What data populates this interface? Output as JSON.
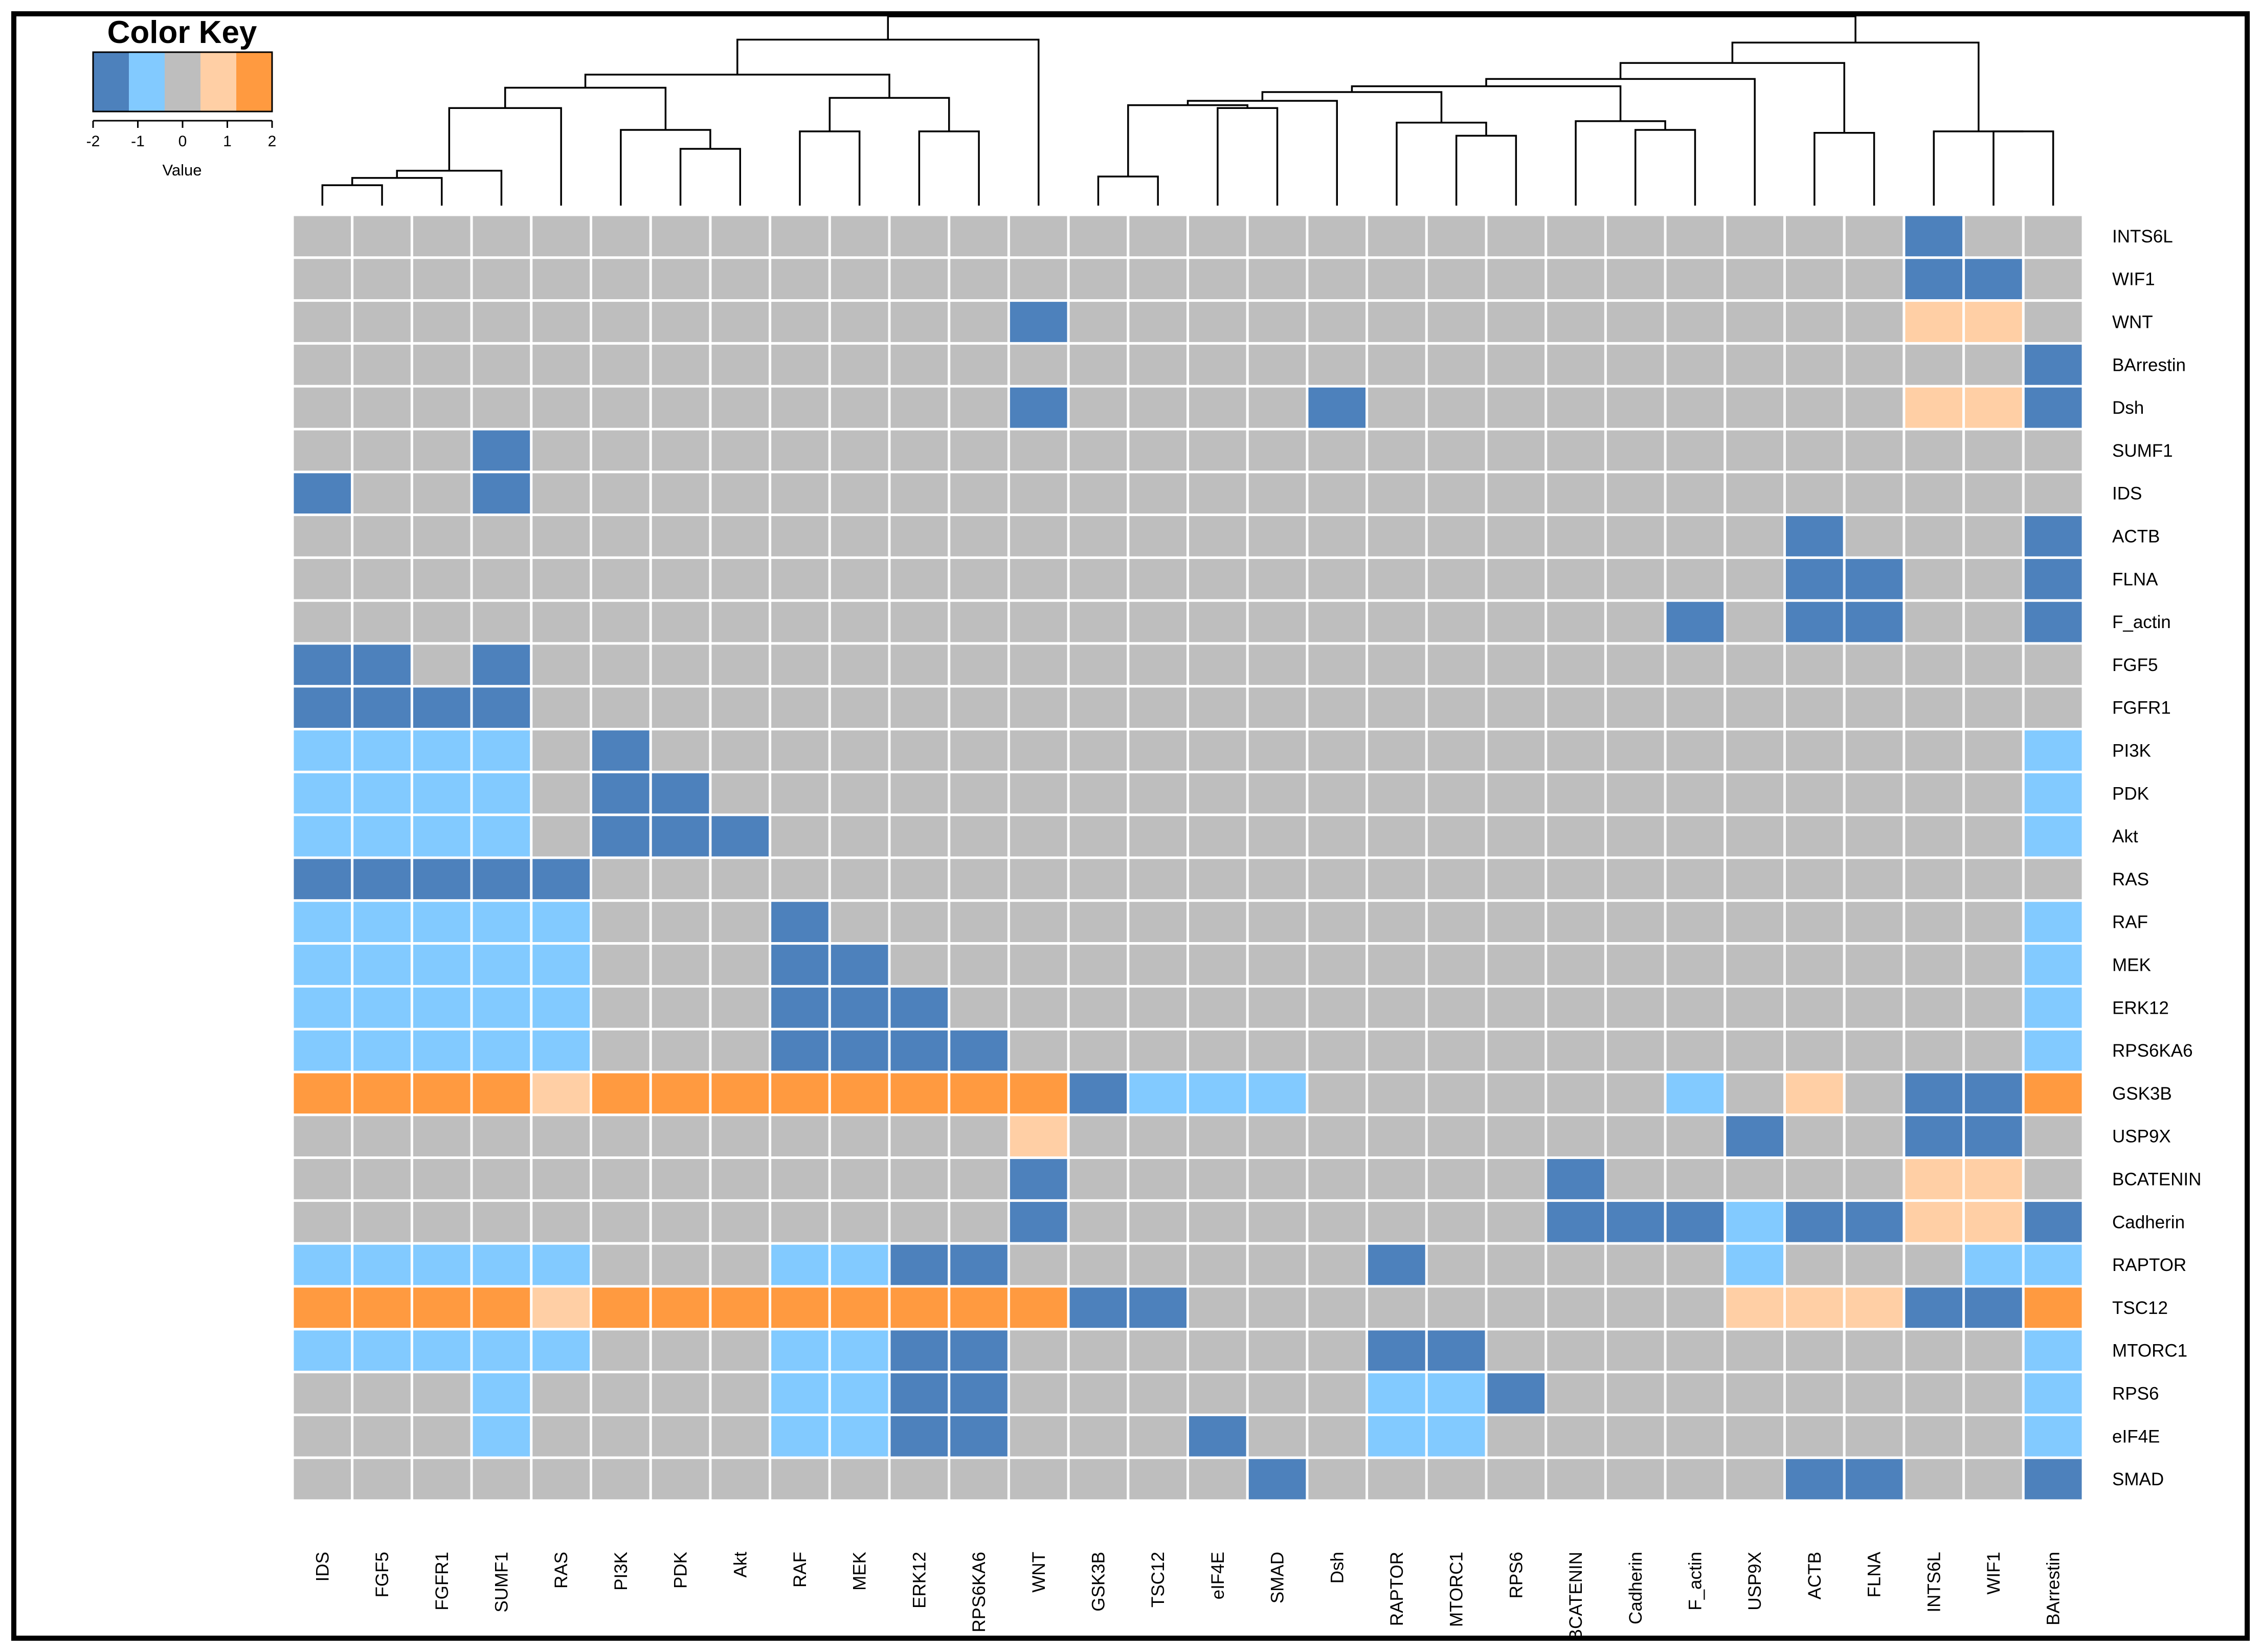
{
  "chart_data": {
    "type": "heatmap",
    "title": "",
    "color_key": {
      "title": "Color Key",
      "label": "Value",
      "range": [
        -2,
        2
      ],
      "ticks": [
        "-2",
        "-1",
        "0",
        "1",
        "2"
      ],
      "colors": [
        "#4d81bc",
        "#82caff",
        "#bebebe",
        "#ffcfa5",
        "#ff9a40"
      ]
    },
    "columns": [
      "IDS",
      "FGF5",
      "FGFR1",
      "SUMF1",
      "RAS",
      "PI3K",
      "PDK",
      "Akt",
      "RAF",
      "MEK",
      "ERK12",
      "RPS6KA6",
      "WNT",
      "GSK3B",
      "TSC12",
      "eIF4E",
      "SMAD",
      "Dsh",
      "RAPTOR",
      "MTORC1",
      "RPS6",
      "BCATENIN",
      "Cadherin",
      "F_actin",
      "USP9X",
      "ACTB",
      "FLNA",
      "INTS6L",
      "WIF1",
      "BArrestin"
    ],
    "rows": [
      "INTS6L",
      "WIF1",
      "WNT",
      "BArrestin",
      "Dsh",
      "SUMF1",
      "IDS",
      "ACTB",
      "FLNA",
      "F_actin",
      "FGF5",
      "FGFR1",
      "PI3K",
      "PDK",
      "Akt",
      "RAS",
      "RAF",
      "MEK",
      "ERK12",
      "RPS6KA6",
      "GSK3B",
      "USP9X",
      "BCATENIN",
      "Cadherin",
      "RAPTOR",
      "TSC12",
      "MTORC1",
      "RPS6",
      "eIF4E",
      "SMAD"
    ],
    "values": [
      [
        0,
        0,
        0,
        0,
        0,
        0,
        0,
        0,
        0,
        0,
        0,
        0,
        0,
        0,
        0,
        0,
        0,
        0,
        0,
        0,
        0,
        0,
        0,
        0,
        0,
        0,
        0,
        -2,
        0,
        0
      ],
      [
        0,
        0,
        0,
        0,
        0,
        0,
        0,
        0,
        0,
        0,
        0,
        0,
        0,
        0,
        0,
        0,
        0,
        0,
        0,
        0,
        0,
        0,
        0,
        0,
        0,
        0,
        0,
        -2,
        -2,
        0
      ],
      [
        0,
        0,
        0,
        0,
        0,
        0,
        0,
        0,
        0,
        0,
        0,
        0,
        -2,
        0,
        0,
        0,
        0,
        0,
        0,
        0,
        0,
        0,
        0,
        0,
        0,
        0,
        0,
        1,
        1,
        0
      ],
      [
        0,
        0,
        0,
        0,
        0,
        0,
        0,
        0,
        0,
        0,
        0,
        0,
        0,
        0,
        0,
        0,
        0,
        0,
        0,
        0,
        0,
        0,
        0,
        0,
        0,
        0,
        0,
        0,
        0,
        -2
      ],
      [
        0,
        0,
        0,
        0,
        0,
        0,
        0,
        0,
        0,
        0,
        0,
        0,
        -2,
        0,
        0,
        0,
        0,
        -2,
        0,
        0,
        0,
        0,
        0,
        0,
        0,
        0,
        0,
        1,
        1,
        -2
      ],
      [
        0,
        0,
        0,
        -2,
        0,
        0,
        0,
        0,
        0,
        0,
        0,
        0,
        0,
        0,
        0,
        0,
        0,
        0,
        0,
        0,
        0,
        0,
        0,
        0,
        0,
        0,
        0,
        0,
        0,
        0
      ],
      [
        -2,
        0,
        0,
        -2,
        0,
        0,
        0,
        0,
        0,
        0,
        0,
        0,
        0,
        0,
        0,
        0,
        0,
        0,
        0,
        0,
        0,
        0,
        0,
        0,
        0,
        0,
        0,
        0,
        0,
        0
      ],
      [
        0,
        0,
        0,
        0,
        0,
        0,
        0,
        0,
        0,
        0,
        0,
        0,
        0,
        0,
        0,
        0,
        0,
        0,
        0,
        0,
        0,
        0,
        0,
        0,
        0,
        -2,
        0,
        0,
        0,
        -2
      ],
      [
        0,
        0,
        0,
        0,
        0,
        0,
        0,
        0,
        0,
        0,
        0,
        0,
        0,
        0,
        0,
        0,
        0,
        0,
        0,
        0,
        0,
        0,
        0,
        0,
        0,
        -2,
        -2,
        0,
        0,
        -2
      ],
      [
        0,
        0,
        0,
        0,
        0,
        0,
        0,
        0,
        0,
        0,
        0,
        0,
        0,
        0,
        0,
        0,
        0,
        0,
        0,
        0,
        0,
        0,
        0,
        -2,
        0,
        -2,
        -2,
        0,
        0,
        -2
      ],
      [
        -2,
        -2,
        0,
        -2,
        0,
        0,
        0,
        0,
        0,
        0,
        0,
        0,
        0,
        0,
        0,
        0,
        0,
        0,
        0,
        0,
        0,
        0,
        0,
        0,
        0,
        0,
        0,
        0,
        0,
        0
      ],
      [
        -2,
        -2,
        -2,
        -2,
        0,
        0,
        0,
        0,
        0,
        0,
        0,
        0,
        0,
        0,
        0,
        0,
        0,
        0,
        0,
        0,
        0,
        0,
        0,
        0,
        0,
        0,
        0,
        0,
        0,
        0
      ],
      [
        -1,
        -1,
        -1,
        -1,
        0,
        -2,
        0,
        0,
        0,
        0,
        0,
        0,
        0,
        0,
        0,
        0,
        0,
        0,
        0,
        0,
        0,
        0,
        0,
        0,
        0,
        0,
        0,
        0,
        0,
        -1
      ],
      [
        -1,
        -1,
        -1,
        -1,
        0,
        -2,
        -2,
        0,
        0,
        0,
        0,
        0,
        0,
        0,
        0,
        0,
        0,
        0,
        0,
        0,
        0,
        0,
        0,
        0,
        0,
        0,
        0,
        0,
        0,
        -1
      ],
      [
        -1,
        -1,
        -1,
        -1,
        0,
        -2,
        -2,
        -2,
        0,
        0,
        0,
        0,
        0,
        0,
        0,
        0,
        0,
        0,
        0,
        0,
        0,
        0,
        0,
        0,
        0,
        0,
        0,
        0,
        0,
        -1
      ],
      [
        -2,
        -2,
        -2,
        -2,
        -2,
        0,
        0,
        0,
        0,
        0,
        0,
        0,
        0,
        0,
        0,
        0,
        0,
        0,
        0,
        0,
        0,
        0,
        0,
        0,
        0,
        0,
        0,
        0,
        0,
        0
      ],
      [
        -1,
        -1,
        -1,
        -1,
        -1,
        0,
        0,
        0,
        -2,
        0,
        0,
        0,
        0,
        0,
        0,
        0,
        0,
        0,
        0,
        0,
        0,
        0,
        0,
        0,
        0,
        0,
        0,
        0,
        0,
        -1
      ],
      [
        -1,
        -1,
        -1,
        -1,
        -1,
        0,
        0,
        0,
        -2,
        -2,
        0,
        0,
        0,
        0,
        0,
        0,
        0,
        0,
        0,
        0,
        0,
        0,
        0,
        0,
        0,
        0,
        0,
        0,
        0,
        -1
      ],
      [
        -1,
        -1,
        -1,
        -1,
        -1,
        0,
        0,
        0,
        -2,
        -2,
        -2,
        0,
        0,
        0,
        0,
        0,
        0,
        0,
        0,
        0,
        0,
        0,
        0,
        0,
        0,
        0,
        0,
        0,
        0,
        -1
      ],
      [
        -1,
        -1,
        -1,
        -1,
        -1,
        0,
        0,
        0,
        -2,
        -2,
        -2,
        -2,
        0,
        0,
        0,
        0,
        0,
        0,
        0,
        0,
        0,
        0,
        0,
        0,
        0,
        0,
        0,
        0,
        0,
        -1
      ],
      [
        2,
        2,
        2,
        2,
        1,
        2,
        2,
        2,
        2,
        2,
        2,
        2,
        2,
        -2,
        -1,
        -1,
        -1,
        0,
        0,
        0,
        0,
        0,
        0,
        -1,
        0,
        1,
        0,
        -2,
        -2,
        2
      ],
      [
        0,
        0,
        0,
        0,
        0,
        0,
        0,
        0,
        0,
        0,
        0,
        0,
        1,
        0,
        0,
        0,
        0,
        0,
        0,
        0,
        0,
        0,
        0,
        0,
        -2,
        0,
        0,
        -2,
        -2,
        0
      ],
      [
        0,
        0,
        0,
        0,
        0,
        0,
        0,
        0,
        0,
        0,
        0,
        0,
        -2,
        0,
        0,
        0,
        0,
        0,
        0,
        0,
        0,
        -2,
        0,
        0,
        0,
        0,
        0,
        1,
        1,
        0
      ],
      [
        0,
        0,
        0,
        0,
        0,
        0,
        0,
        0,
        0,
        0,
        0,
        0,
        -2,
        0,
        0,
        0,
        0,
        0,
        0,
        0,
        0,
        -2,
        -2,
        -2,
        -1,
        -2,
        -2,
        1,
        1,
        -2
      ],
      [
        -1,
        -1,
        -1,
        -1,
        -1,
        0,
        0,
        0,
        -1,
        -1,
        -2,
        -2,
        0,
        0,
        0,
        0,
        0,
        0,
        -2,
        0,
        0,
        0,
        0,
        0,
        -1,
        0,
        0,
        0,
        -1,
        -1
      ],
      [
        2,
        2,
        2,
        2,
        1,
        2,
        2,
        2,
        2,
        2,
        2,
        2,
        2,
        -2,
        -2,
        0,
        0,
        0,
        0,
        0,
        0,
        0,
        0,
        0,
        1,
        1,
        1,
        -2,
        -2,
        2
      ],
      [
        -1,
        -1,
        -1,
        -1,
        -1,
        0,
        0,
        0,
        -1,
        -1,
        -2,
        -2,
        0,
        0,
        0,
        0,
        0,
        0,
        -2,
        -2,
        0,
        0,
        0,
        0,
        0,
        0,
        0,
        0,
        0,
        -1
      ],
      [
        0,
        0,
        0,
        -1,
        0,
        0,
        0,
        0,
        -1,
        -1,
        -2,
        -2,
        0,
        0,
        0,
        0,
        0,
        0,
        -1,
        -1,
        -2,
        0,
        0,
        0,
        0,
        0,
        0,
        0,
        0,
        -1
      ],
      [
        0,
        0,
        0,
        -1,
        0,
        0,
        0,
        0,
        -1,
        -1,
        -2,
        -2,
        0,
        0,
        0,
        -2,
        0,
        0,
        -1,
        -1,
        0,
        0,
        0,
        0,
        0,
        0,
        0,
        0,
        0,
        -1
      ],
      [
        0,
        0,
        0,
        0,
        0,
        0,
        0,
        0,
        0,
        0,
        0,
        0,
        0,
        0,
        0,
        0,
        -2,
        0,
        0,
        0,
        0,
        0,
        0,
        0,
        0,
        -2,
        -2,
        0,
        0,
        -2
      ]
    ],
    "column_dendrogram": [
      [
        0,
        1,
        0.14
      ],
      [
        30,
        2,
        0.19
      ],
      [
        31,
        3,
        0.24
      ],
      [
        32,
        4,
        0.67
      ],
      [
        6,
        7,
        0.39
      ],
      [
        5,
        34,
        0.52
      ],
      [
        33,
        35,
        0.81
      ],
      [
        10,
        11,
        0.51
      ],
      [
        8,
        9,
        0.51
      ],
      [
        38,
        37,
        0.74
      ],
      [
        36,
        39,
        0.9
      ],
      [
        40,
        12,
        1.14
      ],
      [
        13,
        14,
        0.2
      ],
      [
        15,
        16,
        0.67
      ],
      [
        42,
        43,
        0.69
      ],
      [
        19,
        20,
        0.48
      ],
      [
        18,
        45,
        0.57
      ],
      [
        44,
        17,
        0.72
      ],
      [
        47,
        46,
        0.78
      ],
      [
        22,
        23,
        0.52
      ],
      [
        21,
        49,
        0.58
      ],
      [
        48,
        50,
        0.82
      ],
      [
        51,
        24,
        0.87
      ],
      [
        25,
        26,
        0.5
      ],
      [
        28,
        29,
        0.51
      ],
      [
        27,
        54,
        0.51
      ],
      [
        52,
        53,
        0.98
      ],
      [
        56,
        55,
        1.12
      ],
      [
        57,
        41,
        1.3
      ]
    ]
  }
}
